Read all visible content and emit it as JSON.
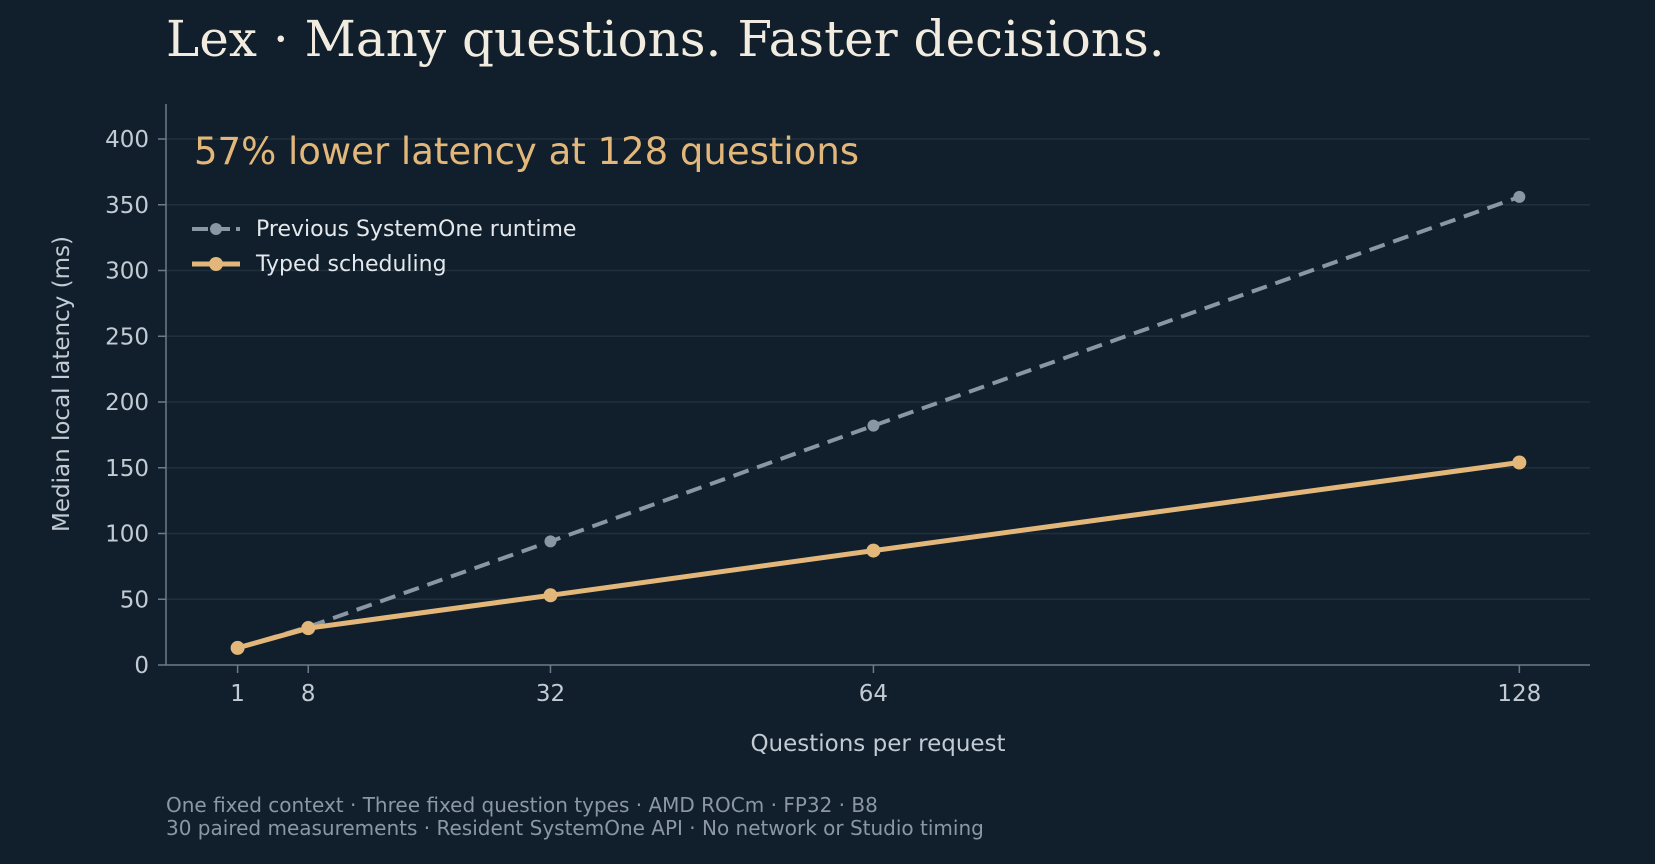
{
  "colors": {
    "background": "#101f2b",
    "grid": "#1f303c",
    "axis": "#6c7b87",
    "title": "#f2ece0",
    "accent": "#e2b779",
    "baseline_series": "#8897a3",
    "tick_text": "#c2cbd3",
    "footnote_text": "#8b98a4"
  },
  "chart_data": {
    "type": "line",
    "title": "Lex · Many questions. Faster decisions.",
    "headline": "57% lower latency at 128 questions",
    "xlabel": "Questions per request",
    "ylabel": "Median local latency (ms)",
    "x": [
      1,
      8,
      32,
      64,
      128
    ],
    "x_ticks": [
      "1",
      "8",
      "32",
      "64",
      "128"
    ],
    "xlim": [
      -5.5,
      135
    ],
    "ylim": [
      0,
      400
    ],
    "y_ticks": [
      0,
      50,
      100,
      150,
      200,
      250,
      300,
      350,
      400
    ],
    "grid": "horizontal",
    "legend_position": "top-left",
    "series": [
      {
        "name": "Previous SystemOne runtime",
        "values": [
          13,
          29,
          94,
          182,
          356
        ],
        "color": "#8897a3",
        "style": "dashed"
      },
      {
        "name": "Typed scheduling",
        "values": [
          13,
          28,
          53,
          87,
          154
        ],
        "color": "#e2b779",
        "style": "solid"
      }
    ],
    "footnotes": [
      "One fixed context · Three fixed question types · AMD ROCm · FP32 · B8",
      "30 paired measurements · Resident SystemOne API · No network or Studio timing"
    ]
  }
}
